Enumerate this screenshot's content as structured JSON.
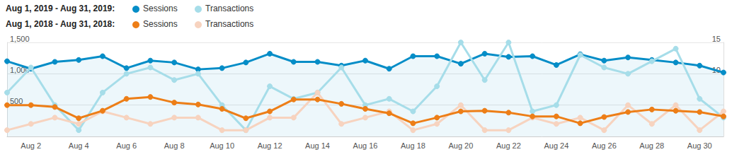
{
  "chart_data": {
    "type": "line",
    "categories": [
      null,
      "Aug 2",
      null,
      "Aug 4",
      null,
      "Aug 6",
      null,
      "Aug 8",
      null,
      "Aug 10",
      null,
      "Aug 12",
      null,
      "Aug 14",
      null,
      "Aug 16",
      null,
      "Aug 18",
      null,
      "Aug 20",
      null,
      "Aug 22",
      null,
      "Aug 24",
      null,
      "Aug 26",
      null,
      "Aug 28",
      null,
      "Aug 30",
      null
    ],
    "series": [
      {
        "group": "Aug 1, 2019 - Aug 31, 2019:",
        "name": "Sessions",
        "color": "#058dc7",
        "type": "area",
        "marker": "circle",
        "values": [
          1200,
          1080,
          1190,
          1220,
          1280,
          1090,
          1210,
          1180,
          1070,
          1090,
          1180,
          1320,
          1190,
          1190,
          1130,
          1210,
          1080,
          1280,
          1280,
          1160,
          1320,
          1270,
          1280,
          1140,
          1310,
          1210,
          1260,
          1220,
          1180,
          1130,
          1020
        ]
      },
      {
        "group": "Aug 1, 2019 - Aug 31, 2019:",
        "name": "Transactions",
        "color": "#a6dde9",
        "type": "line",
        "marker": "circle",
        "axis": "y2",
        "values": [
          7,
          11,
          5,
          1,
          7,
          10,
          11,
          9,
          10,
          5,
          1,
          8,
          6,
          7,
          11,
          5,
          6,
          4,
          8,
          15,
          9,
          15,
          4,
          5,
          13,
          11,
          10,
          12,
          14,
          6,
          3
        ]
      },
      {
        "group": "Aug 1, 2018 - Aug 31, 2018:",
        "name": "Sessions",
        "color": "#ed7e17",
        "type": "line",
        "marker": "circle",
        "values": [
          500,
          500,
          470,
          290,
          410,
          600,
          630,
          540,
          510,
          440,
          290,
          400,
          590,
          590,
          520,
          440,
          370,
          210,
          300,
          400,
          410,
          380,
          320,
          320,
          210,
          310,
          390,
          430,
          410,
          390,
          320
        ]
      },
      {
        "group": "Aug 1, 2018 - Aug 31, 2018:",
        "name": "Transactions",
        "color": "#f7d3bf",
        "type": "line",
        "marker": "circle",
        "axis": "y2",
        "values": [
          1,
          2,
          3,
          2,
          4,
          3,
          2,
          3,
          3,
          1,
          1,
          3,
          3,
          7,
          2,
          3,
          4,
          1,
          2,
          5,
          1,
          1,
          3,
          2,
          3,
          1,
          5,
          2,
          5,
          1,
          4
        ]
      }
    ],
    "ylim": [
      0,
      1500
    ],
    "yticks": [
      500,
      {
        "value": 1000,
        "label": "1,000"
      },
      {
        "value": 1500,
        "label": "1,500"
      }
    ],
    "y2lim": [
      0,
      15
    ],
    "y2ticks": [
      10,
      15
    ],
    "grid": true
  }
}
